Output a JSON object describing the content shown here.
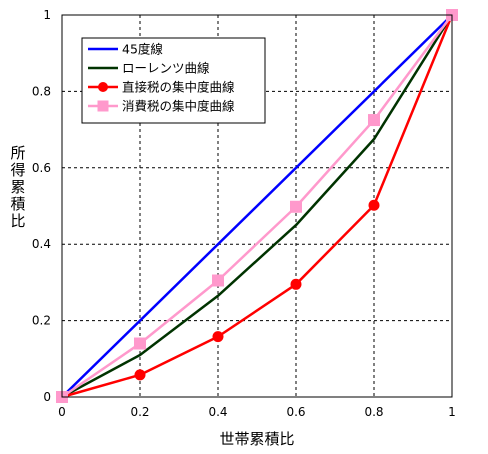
{
  "chart_data": {
    "type": "line",
    "title": "",
    "xlabel": "世帯累積比",
    "ylabel": "所得累積比",
    "xlim": [
      0,
      1
    ],
    "ylim": [
      0,
      1
    ],
    "x_ticks": [
      "0",
      "0.2",
      "0.4",
      "0.6",
      "0.8",
      "1"
    ],
    "y_ticks": [
      "0",
      "0.2",
      "0.4",
      "0.6",
      "0.8",
      "1"
    ],
    "grid": true,
    "legend_position": "top-left",
    "series": [
      {
        "name": "45度線",
        "color": "#0000ff",
        "marker": "none",
        "x": [
          0,
          1
        ],
        "y": [
          0,
          1
        ]
      },
      {
        "name": "ローレンツ曲線",
        "color": "#003300",
        "marker": "none",
        "x": [
          0,
          0.2,
          0.4,
          0.6,
          0.8,
          1
        ],
        "y": [
          0,
          0.11,
          0.265,
          0.45,
          0.675,
          1
        ]
      },
      {
        "name": "直接税の集中度曲線",
        "color": "#ff0000",
        "marker": "circle",
        "x": [
          0,
          0.2,
          0.4,
          0.6,
          0.8,
          1
        ],
        "y": [
          0,
          0.058,
          0.158,
          0.295,
          0.502,
          1
        ]
      },
      {
        "name": "消費税の集中度曲線",
        "color": "#ff99cc",
        "marker": "square",
        "x": [
          0,
          0.2,
          0.4,
          0.6,
          0.8,
          1
        ],
        "y": [
          0,
          0.14,
          0.305,
          0.498,
          0.725,
          1
        ]
      }
    ]
  }
}
